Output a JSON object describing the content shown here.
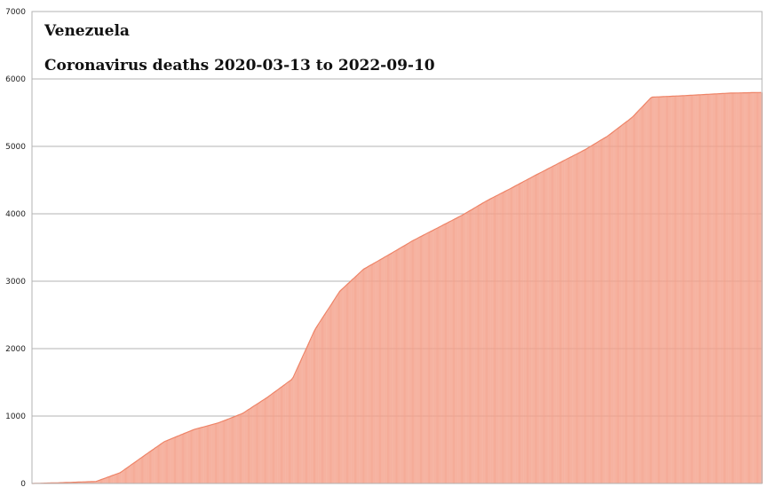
{
  "chart_data": {
    "type": "area",
    "title": "Venezuela",
    "subtitle": "Coronavirus deaths 2020-03-13 to 2022-09-10",
    "xlabel": "",
    "ylabel": "",
    "ylim": [
      0,
      7000
    ],
    "yticks": [
      0,
      1000,
      2000,
      3000,
      4000,
      5000,
      6000,
      7000
    ],
    "grid": true,
    "legend": "none",
    "x_start": "2020-03-13",
    "x_end": "2022-09-10",
    "fill_color": "#f4a08a",
    "stroke_color": "#ee8468",
    "series": [
      {
        "x": [
          "2020-03-13",
          "2020-04-15",
          "2020-06-01",
          "2020-07-01",
          "2020-08-01",
          "2020-08-25",
          "2020-10-01",
          "2020-11-01",
          "2020-12-01",
          "2021-01-01",
          "2021-02-01",
          "2021-03-01",
          "2021-04-01",
          "2021-05-01",
          "2021-06-01",
          "2021-07-01",
          "2021-08-01",
          "2021-09-01",
          "2021-10-01",
          "2021-11-01",
          "2021-12-01",
          "2022-01-01",
          "2022-02-01",
          "2022-03-01",
          "2022-04-01",
          "2022-04-25",
          "2022-06-01",
          "2022-07-01",
          "2022-08-01",
          "2022-09-10"
        ],
        "y": [
          0,
          10,
          30,
          160,
          420,
          620,
          800,
          900,
          1040,
          1280,
          1550,
          2280,
          2850,
          3180,
          3390,
          3600,
          3790,
          3980,
          4190,
          4380,
          4570,
          4760,
          4950,
          5150,
          5430,
          5730,
          5750,
          5770,
          5790,
          5800
        ]
      }
    ]
  }
}
